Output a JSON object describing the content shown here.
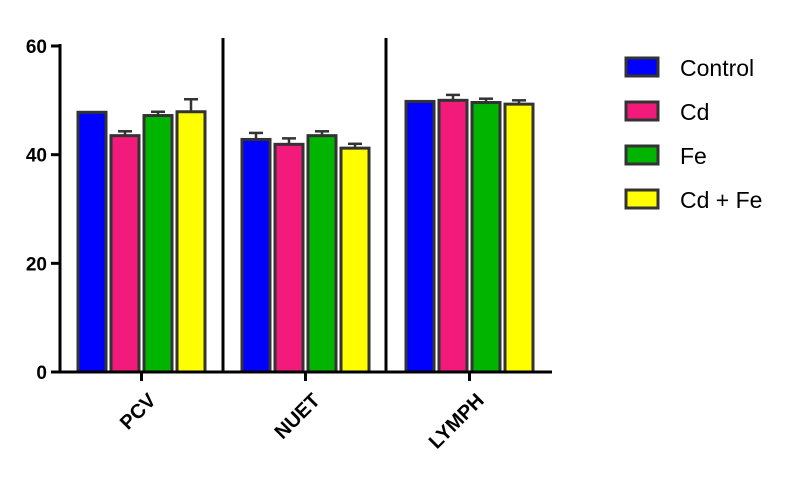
{
  "chart_data": {
    "type": "bar",
    "categories": [
      "PCV",
      "NUET",
      "LYMPH"
    ],
    "series": [
      {
        "name": "Control",
        "color": "#0000ff",
        "values": [
          47.8,
          42.8,
          49.8
        ],
        "errors": [
          0.0,
          1.2,
          0.0
        ]
      },
      {
        "name": "Cd",
        "color": "#f21a7a",
        "values": [
          43.5,
          41.9,
          50.0
        ],
        "errors": [
          0.8,
          1.1,
          1.0
        ]
      },
      {
        "name": "Fe",
        "color": "#00b400",
        "values": [
          47.2,
          43.5,
          49.6
        ],
        "errors": [
          0.7,
          0.8,
          0.7
        ]
      },
      {
        "name": "Cd + Fe",
        "color": "#ffff00",
        "values": [
          47.9,
          41.2,
          49.3
        ],
        "errors": [
          2.3,
          0.8,
          0.7
        ]
      }
    ],
    "ylim": [
      0,
      60
    ],
    "yticks": [
      0,
      20,
      40,
      60
    ],
    "xlabel": "",
    "ylabel": "",
    "title": "",
    "legend_position": "right",
    "grid": false
  }
}
